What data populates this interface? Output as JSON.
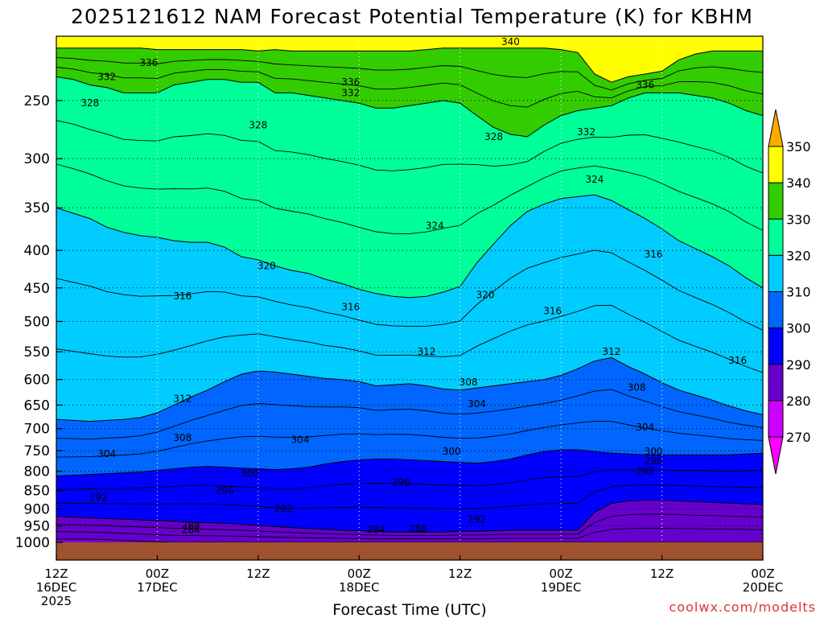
{
  "chart_data": {
    "type": "heatmap",
    "title": "2025121612 NAM Forecast Potential Temperature (K) for KBHM",
    "xlabel": "Forecast Time (UTC)",
    "ylabel": "",
    "credit": "coolwx.com/modelts",
    "y_axis": {
      "scale": "pressure (log-like, inverted)",
      "range": [
        1000,
        200
      ],
      "ticks": [
        "250",
        "300",
        "350",
        "400",
        "450",
        "500",
        "550",
        "600",
        "650",
        "700",
        "750",
        "800",
        "850",
        "900",
        "950",
        "1000"
      ],
      "tick_values": [
        250,
        300,
        350,
        400,
        450,
        500,
        550,
        600,
        650,
        700,
        750,
        800,
        850,
        900,
        950,
        1000
      ]
    },
    "x_axis": {
      "range_hours": [
        0,
        84
      ],
      "ticks": [
        {
          "hour": 0,
          "line1": "12Z",
          "line2": "16DEC",
          "line3": "2025"
        },
        {
          "hour": 12,
          "line1": "00Z",
          "line2": "17DEC",
          "line3": ""
        },
        {
          "hour": 24,
          "line1": "12Z",
          "line2": "",
          "line3": ""
        },
        {
          "hour": 36,
          "line1": "00Z",
          "line2": "18DEC",
          "line3": ""
        },
        {
          "hour": 48,
          "line1": "12Z",
          "line2": "",
          "line3": ""
        },
        {
          "hour": 60,
          "line1": "00Z",
          "line2": "19DEC",
          "line3": ""
        },
        {
          "hour": 72,
          "line1": "12Z",
          "line2": "",
          "line3": ""
        },
        {
          "hour": 84,
          "line1": "00Z",
          "line2": "20DEC",
          "line3": ""
        }
      ]
    },
    "legend": {
      "placement": "right",
      "levels": [
        "350",
        "340",
        "330",
        "320",
        "310",
        "300",
        "290",
        "280",
        "270"
      ],
      "bands": [
        {
          "range": [
            340,
            350
          ],
          "color": "#ffff00"
        },
        {
          "range": [
            330,
            340
          ],
          "color": "#33cc00"
        },
        {
          "range": [
            320,
            330
          ],
          "color": "#00ff99"
        },
        {
          "range": [
            310,
            320
          ],
          "color": "#00ccff"
        },
        {
          "range": [
            300,
            310
          ],
          "color": "#0066ff"
        },
        {
          "range": [
            290,
            300
          ],
          "color": "#0000ff"
        },
        {
          "range": [
            280,
            290
          ],
          "color": "#6600cc"
        },
        {
          "range": [
            270,
            280
          ],
          "color": "#cc00ff"
        }
      ],
      "top_arrow_color": "#ffaa00",
      "bottom_arrow_color": "#ff00ff"
    },
    "bands": [
      {
        "name": "340-350",
        "color": "#ffff00",
        "lower_boundary_pressure": [
          212,
          212,
          212,
          212,
          212,
          212,
          213,
          213,
          213,
          213,
          213,
          213,
          214,
          213,
          214,
          214,
          214,
          214,
          214,
          214,
          214,
          214,
          213,
          212,
          212,
          212,
          212,
          212,
          212,
          212,
          213,
          215,
          230,
          236,
          232,
          230,
          228,
          220,
          216,
          214,
          214,
          214,
          214
        ]
      },
      {
        "name": "330-340",
        "color": "#33cc00",
        "lower_boundary_pressure": [
          232,
          234,
          238,
          240,
          244,
          244,
          244,
          238,
          236,
          234,
          234,
          236,
          236,
          244,
          244,
          246,
          248,
          250,
          252,
          256,
          256,
          254,
          252,
          250,
          252,
          262,
          272,
          278,
          280,
          270,
          262,
          258,
          256,
          254,
          248,
          244,
          244,
          244,
          246,
          248,
          252,
          258,
          262
        ]
      },
      {
        "name": "320-330",
        "color": "#00ff99",
        "lower_boundary_pressure": [
          350,
          356,
          362,
          372,
          378,
          382,
          384,
          388,
          390,
          390,
          396,
          408,
          412,
          420,
          426,
          430,
          438,
          444,
          452,
          458,
          462,
          464,
          462,
          456,
          448,
          416,
          392,
          370,
          354,
          346,
          340,
          338,
          336,
          342,
          352,
          362,
          374,
          388,
          398,
          408,
          420,
          436,
          450
        ]
      },
      {
        "name": "310-320",
        "color": "#00ccff",
        "lower_boundary_pressure": [
          680,
          682,
          684,
          682,
          680,
          676,
          666,
          650,
          634,
          620,
          604,
          590,
          584,
          586,
          590,
          594,
          598,
          600,
          604,
          612,
          610,
          608,
          612,
          618,
          620,
          616,
          612,
          608,
          604,
          600,
          592,
          580,
          566,
          560,
          576,
          590,
          606,
          620,
          630,
          640,
          652,
          662,
          670
        ]
      },
      {
        "name": "300-310",
        "color": "#0066ff",
        "lower_boundary_pressure": [
          812,
          810,
          808,
          806,
          804,
          802,
          798,
          794,
          790,
          788,
          790,
          792,
          794,
          796,
          794,
          790,
          782,
          776,
          772,
          770,
          770,
          772,
          774,
          776,
          778,
          780,
          776,
          770,
          760,
          752,
          748,
          748,
          752,
          756,
          758,
          760,
          760,
          760,
          760,
          760,
          760,
          758,
          756
        ]
      },
      {
        "name": "290-300",
        "color": "#0000ff",
        "lower_boundary_pressure": [
          922,
          924,
          926,
          928,
          930,
          932,
          934,
          936,
          938,
          940,
          942,
          944,
          948,
          952,
          955,
          958,
          960,
          962,
          964,
          966,
          968,
          968,
          968,
          968,
          966,
          966,
          964,
          962,
          962,
          962,
          962,
          962,
          910,
          885,
          878,
          876,
          876,
          878,
          880,
          882,
          884,
          886,
          888
        ]
      },
      {
        "name": "280-290",
        "color": "#6600cc",
        "lower_boundary_pressure": [
          990,
          990,
          990,
          992,
          994,
          996,
          998,
          1000,
          1000,
          1000,
          1000,
          1000,
          1000,
          1000,
          1000,
          1000,
          1000,
          1000,
          1000,
          1000,
          1000,
          1000,
          1000,
          1000,
          1000,
          1000,
          1000,
          1000,
          1000,
          1000,
          1000,
          1000,
          1000,
          1000,
          1000,
          1000,
          1000,
          1000,
          1000,
          1000,
          1000,
          1000,
          1000
        ]
      }
    ],
    "contour_labels": [
      {
        "text": "340",
        "hour": 54,
        "p": 208
      },
      {
        "text": "336",
        "hour": 11,
        "p": 222
      },
      {
        "text": "332",
        "hour": 6,
        "p": 232
      },
      {
        "text": "336",
        "hour": 35,
        "p": 236
      },
      {
        "text": "336",
        "hour": 70,
        "p": 238
      },
      {
        "text": "332",
        "hour": 35,
        "p": 244
      },
      {
        "text": "328",
        "hour": 4,
        "p": 252
      },
      {
        "text": "328",
        "hour": 24,
        "p": 270
      },
      {
        "text": "332",
        "hour": 63,
        "p": 276
      },
      {
        "text": "328",
        "hour": 52,
        "p": 280
      },
      {
        "text": "324",
        "hour": 64,
        "p": 320
      },
      {
        "text": "324",
        "hour": 45,
        "p": 370
      },
      {
        "text": "320",
        "hour": 25,
        "p": 420
      },
      {
        "text": "316",
        "hour": 71,
        "p": 405
      },
      {
        "text": "316",
        "hour": 15,
        "p": 462
      },
      {
        "text": "320",
        "hour": 51,
        "p": 460
      },
      {
        "text": "316",
        "hour": 35,
        "p": 478
      },
      {
        "text": "316",
        "hour": 59,
        "p": 484
      },
      {
        "text": "312",
        "hour": 44,
        "p": 550
      },
      {
        "text": "312",
        "hour": 66,
        "p": 550
      },
      {
        "text": "316",
        "hour": 81,
        "p": 565
      },
      {
        "text": "308",
        "hour": 49,
        "p": 605
      },
      {
        "text": "308",
        "hour": 69,
        "p": 615
      },
      {
        "text": "312",
        "hour": 15,
        "p": 637
      },
      {
        "text": "304",
        "hour": 50,
        "p": 648
      },
      {
        "text": "304",
        "hour": 70,
        "p": 697
      },
      {
        "text": "308",
        "hour": 15,
        "p": 720
      },
      {
        "text": "304",
        "hour": 29,
        "p": 725
      },
      {
        "text": "304",
        "hour": 6,
        "p": 757
      },
      {
        "text": "300",
        "hour": 47,
        "p": 752
      },
      {
        "text": "300",
        "hour": 71,
        "p": 752
      },
      {
        "text": "296",
        "hour": 71,
        "p": 775
      },
      {
        "text": "292",
        "hour": 70,
        "p": 800
      },
      {
        "text": "300",
        "hour": 23,
        "p": 806
      },
      {
        "text": "296",
        "hour": 41,
        "p": 828
      },
      {
        "text": "296",
        "hour": 20,
        "p": 850
      },
      {
        "text": "292",
        "hour": 5,
        "p": 868
      },
      {
        "text": "292",
        "hour": 27,
        "p": 900
      },
      {
        "text": "292",
        "hour": 50,
        "p": 930
      },
      {
        "text": "288",
        "hour": 16,
        "p": 948
      },
      {
        "text": "284",
        "hour": 16,
        "p": 962
      },
      {
        "text": "284",
        "hour": 38,
        "p": 960
      },
      {
        "text": "288",
        "hour": 43,
        "p": 958
      }
    ]
  }
}
